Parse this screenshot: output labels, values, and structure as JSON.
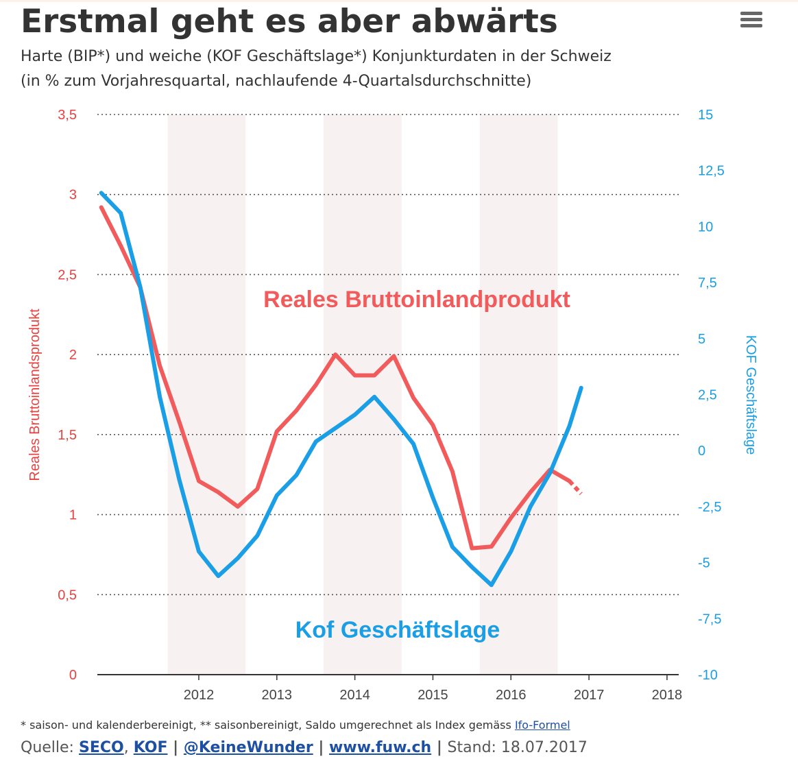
{
  "page": {
    "title": "Erstmal geht es aber abwärts",
    "subtitle_line1": "Harte (BIP*) und weiche (KOF Geschäftslage*) Konjunkturdaten in der Schweiz",
    "subtitle_line2": "(in % zum Vorjahresquartal, nachlaufende 4-Quartalsdurchschnitte)",
    "menu_icon": "hamburger-menu-icon"
  },
  "footer": {
    "footnote_text": "* saison- und kalenderbereinigt, ** saisonbereinigt, Saldo umgerechnet als Index gemäss ",
    "footnote_link": "Ifo-Formel",
    "source_label": "Quelle: ",
    "source_seco": "SECO",
    "source_comma": ",",
    "source_kof": "KOF",
    "sep": " | ",
    "source_twitter": "@KeineWunder",
    "source_site": "www.fuw.ch",
    "stand": "Stand: 18.07.2017"
  },
  "chart_data": {
    "type": "line",
    "title": "Erstmal geht es aber abwärts",
    "x_ticks": [
      2012,
      2013,
      2014,
      2015,
      2016,
      2017,
      2018
    ],
    "x_tick_labels": [
      "2012",
      "2013",
      "2014",
      "2015",
      "2016",
      "2017",
      "2018"
    ],
    "xlim": [
      2010.7,
      2018.15
    ],
    "shaded_periods": [
      [
        2011.6,
        2012.6
      ],
      [
        2013.6,
        2014.6
      ],
      [
        2015.6,
        2016.6
      ]
    ],
    "left_axis": {
      "label": "Reales Bruttoinlandsprodukt",
      "ylim": [
        0,
        3.5
      ],
      "ticks": [
        0,
        0.5,
        1,
        1.5,
        2,
        2.5,
        3,
        3.5
      ],
      "tick_labels": [
        "0",
        "0,5",
        "1",
        "1,5",
        "2",
        "2,5",
        "3",
        "3,5"
      ],
      "color": "#e8413f"
    },
    "right_axis": {
      "label": "KOF Geschäftslage",
      "ylim": [
        -10,
        15
      ],
      "ticks": [
        -10,
        -7.5,
        -5,
        -2.5,
        0,
        2.5,
        5,
        7.5,
        10,
        12.5,
        15
      ],
      "tick_labels": [
        "-10",
        "-7,5",
        "-5",
        "-2,5",
        "0",
        "2,5",
        "5",
        "7,5",
        "10",
        "12,5",
        "15"
      ],
      "color": "#1a9ee6"
    },
    "series": [
      {
        "name": "Reales Bruttoinlandprodukt",
        "axis": "left",
        "color": "#f25b5b",
        "x": [
          2010.75,
          2011.0,
          2011.25,
          2011.5,
          2011.75,
          2012.0,
          2012.25,
          2012.5,
          2012.75,
          2013.0,
          2013.25,
          2013.5,
          2013.75,
          2014.0,
          2014.25,
          2014.5,
          2014.75,
          2015.0,
          2015.25,
          2015.5,
          2015.75,
          2016.0,
          2016.25,
          2016.5,
          2016.75
        ],
        "values": [
          2.92,
          2.68,
          2.42,
          1.93,
          1.58,
          1.21,
          1.14,
          1.05,
          1.16,
          1.52,
          1.65,
          1.81,
          2.0,
          1.87,
          1.87,
          1.99,
          1.73,
          1.56,
          1.27,
          0.79,
          0.8,
          0.98,
          1.14,
          1.28,
          1.21
        ],
        "estimate": {
          "x": [
            2016.75,
            2016.9
          ],
          "values": [
            1.21,
            1.13
          ]
        }
      },
      {
        "name": "Kof Geschäftslage",
        "axis": "right",
        "color": "#1a9ee6",
        "x": [
          2010.75,
          2011.0,
          2011.25,
          2011.5,
          2011.75,
          2012.0,
          2012.25,
          2012.5,
          2012.75,
          2013.0,
          2013.25,
          2013.5,
          2013.75,
          2014.0,
          2014.25,
          2014.5,
          2014.75,
          2015.0,
          2015.25,
          2015.5,
          2015.75,
          2016.0,
          2016.25,
          2016.5,
          2016.75,
          2016.9
        ],
        "values": [
          11.5,
          10.6,
          7.3,
          2.4,
          -1.3,
          -4.5,
          -5.6,
          -4.8,
          -3.8,
          -2.0,
          -1.1,
          0.4,
          1.0,
          1.6,
          2.4,
          1.4,
          0.3,
          -2.1,
          -4.3,
          -5.2,
          -6.0,
          -4.5,
          -2.5,
          -1.0,
          1.1,
          2.8
        ]
      }
    ],
    "annotations": [
      {
        "text": "Reales Bruttoinlandprodukt",
        "color": "#f25b5b",
        "position": "center-upper"
      },
      {
        "text": "Kof Geschäftslage",
        "color": "#1a9ee6",
        "position": "center-lower"
      }
    ]
  }
}
